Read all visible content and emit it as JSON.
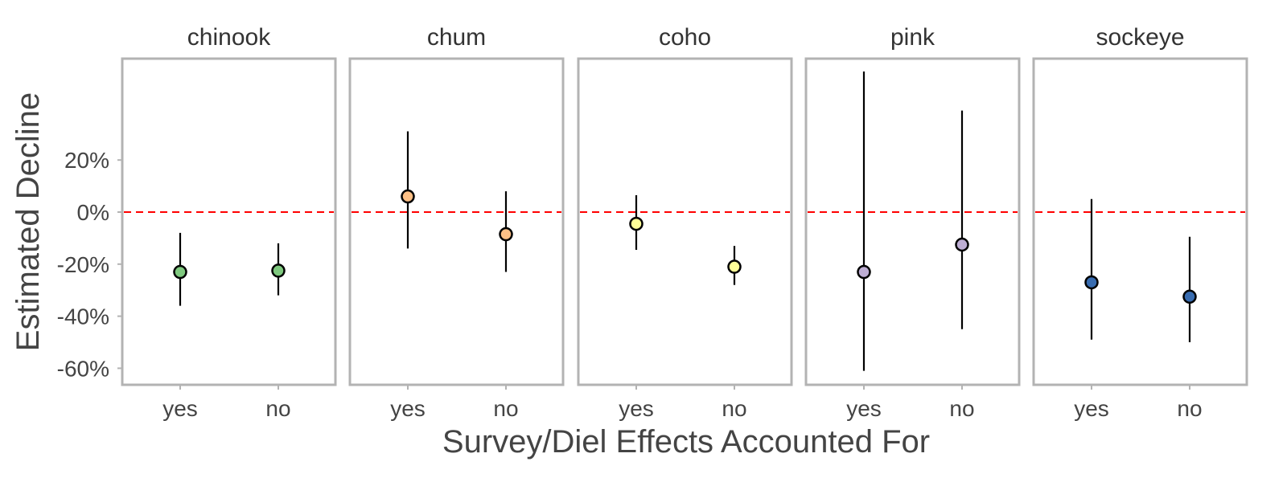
{
  "chart_data": {
    "type": "scatter",
    "subtype": "point-errorbar-facets",
    "xlabel": "Survey/Diel Effects Accounted For",
    "ylabel": "Estimated Decline",
    "categories": [
      "yes",
      "no"
    ],
    "ylim": [
      -66,
      60
    ],
    "yticks": [
      20,
      0,
      -20,
      -40,
      -60
    ],
    "ytick_labels": [
      "20%",
      "0%",
      "-20%",
      "-40%",
      "-60%"
    ],
    "reference_line": {
      "y": 0,
      "color": "#ff0000",
      "style": "dashed"
    },
    "grid": false,
    "legend": "none",
    "facets": [
      {
        "name": "chinook",
        "color": "#7fc97f",
        "points": [
          {
            "x": "yes",
            "y": -23,
            "lower": -36,
            "upper": -8
          },
          {
            "x": "no",
            "y": -22.5,
            "lower": -32,
            "upper": -12
          }
        ]
      },
      {
        "name": "chum",
        "color": "#fdc086",
        "points": [
          {
            "x": "yes",
            "y": 6,
            "lower": -14,
            "upper": 31
          },
          {
            "x": "no",
            "y": -8.5,
            "lower": -23,
            "upper": 8
          }
        ]
      },
      {
        "name": "coho",
        "color": "#ffff99",
        "points": [
          {
            "x": "yes",
            "y": -4.5,
            "lower": -14.5,
            "upper": 6.5
          },
          {
            "x": "no",
            "y": -21,
            "lower": -28,
            "upper": -13
          }
        ]
      },
      {
        "name": "pink",
        "color": "#beaed4",
        "points": [
          {
            "x": "yes",
            "y": -23,
            "lower": -61,
            "upper": 54
          },
          {
            "x": "no",
            "y": -12.5,
            "lower": -45,
            "upper": 39
          }
        ]
      },
      {
        "name": "sockeye",
        "color": "#386cb0",
        "points": [
          {
            "x": "yes",
            "y": -27,
            "lower": -49,
            "upper": 5
          },
          {
            "x": "no",
            "y": -32.5,
            "lower": -50,
            "upper": -9.5
          }
        ]
      }
    ]
  }
}
